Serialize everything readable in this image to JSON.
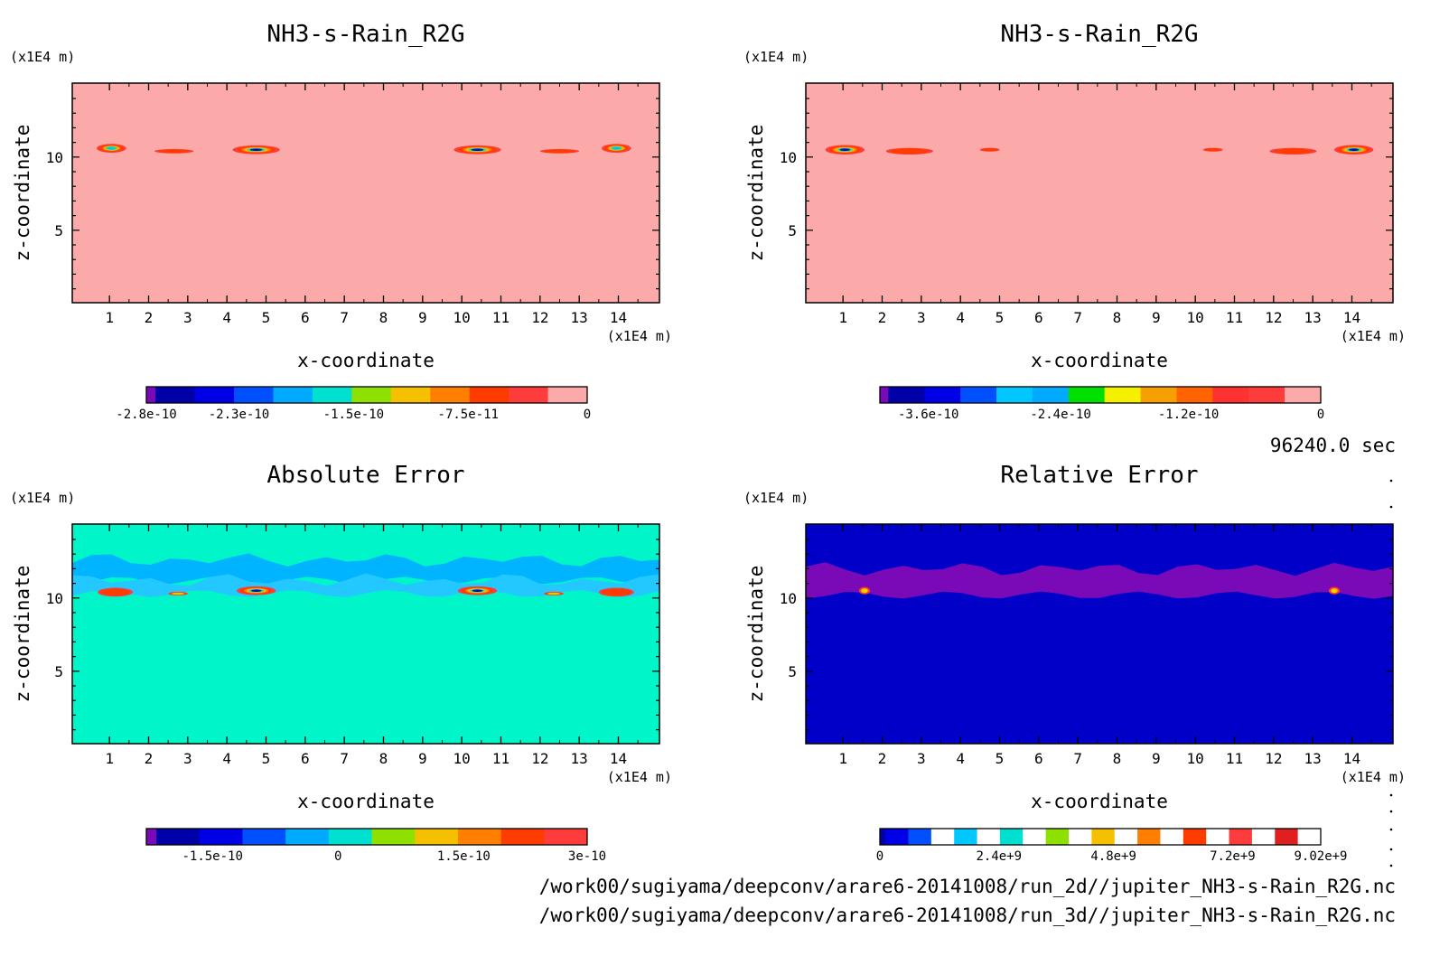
{
  "footer": {
    "time": "96240.0 sec",
    "file1": "/work00/sugiyama/deepconv/arare6-20141008/run_2d//jupiter_NH3-s-Rain_R2G.nc",
    "file2": "/work00/sugiyama/deepconv/arare6-20141008/run_3d//jupiter_NH3-s-Rain_R2G.nc"
  },
  "chart_data": [
    {
      "type": "heatmap",
      "title": "NH3-s-Rain_R2G",
      "xlabel": "x-coordinate",
      "ylabel": "z-coordinate",
      "x_unit": "(x1E4 m)",
      "z_unit": "(x1E4 m)",
      "xlim": [
        0.05,
        15.05
      ],
      "zlim": [
        0.05,
        15.05
      ],
      "xticks": [
        "1",
        "2",
        "3",
        "4",
        "5",
        "6",
        "7",
        "8",
        "9",
        "10",
        "11",
        "12",
        "13",
        "14"
      ],
      "zticks": [
        "5",
        "10"
      ],
      "background": "#fba9a9",
      "colorbar": {
        "colors": [
          "#7a0ab8",
          "#0000a8",
          "#0000e6",
          "#0050ff",
          "#00aaff",
          "#00e0d0",
          "#8ee000",
          "#f5c000",
          "#ff8000",
          "#ff3c00",
          "#ff3c3c",
          "#fba9a9"
        ],
        "ticks": [
          "-2.8e-10",
          "-2.3e-10",
          "-1.5e-10",
          "-7.5e-11",
          "0"
        ],
        "tick_positions": [
          0,
          0.21,
          0.47,
          0.73,
          1
        ]
      },
      "blobs": [
        {
          "x": 1.05,
          "z": 10.6,
          "w": 0.75,
          "h": 0.6,
          "core": "#00c8e0"
        },
        {
          "x": 2.65,
          "z": 10.4,
          "w": 1.0,
          "h": 0.3,
          "core": "#ff3c00"
        },
        {
          "x": 4.75,
          "z": 10.5,
          "w": 1.2,
          "h": 0.6,
          "core": "#0000a8"
        },
        {
          "x": 10.4,
          "z": 10.5,
          "w": 1.2,
          "h": 0.6,
          "core": "#0000a8"
        },
        {
          "x": 12.5,
          "z": 10.4,
          "w": 1.0,
          "h": 0.3,
          "core": "#ff3c00"
        },
        {
          "x": 13.95,
          "z": 10.6,
          "w": 0.75,
          "h": 0.6,
          "core": "#00c8e0"
        }
      ]
    },
    {
      "type": "heatmap",
      "title": "NH3-s-Rain_R2G",
      "xlabel": "x-coordinate",
      "ylabel": "z-coordinate",
      "x_unit": "(x1E4 m)",
      "z_unit": "(x1E4 m)",
      "xlim": [
        0.05,
        15.05
      ],
      "zlim": [
        0.05,
        15.05
      ],
      "xticks": [
        "1",
        "2",
        "3",
        "4",
        "5",
        "6",
        "7",
        "8",
        "9",
        "10",
        "11",
        "12",
        "13",
        "14"
      ],
      "zticks": [
        "5",
        "10"
      ],
      "background": "#fba9a9",
      "colorbar": {
        "colors": [
          "#7a0ab8",
          "#0000a8",
          "#0000e6",
          "#0050ff",
          "#00c8ff",
          "#00aaff",
          "#00e000",
          "#f5f000",
          "#f5a000",
          "#ff6400",
          "#ff3232",
          "#ff3c3c",
          "#fba9a9"
        ],
        "ticks": [
          "-3.6e-10",
          "-2.4e-10",
          "-1.2e-10",
          "0"
        ],
        "tick_positions": [
          0.11,
          0.41,
          0.7,
          1
        ]
      },
      "blobs": [
        {
          "x": 1.05,
          "z": 10.5,
          "w": 1.0,
          "h": 0.65,
          "core": "#0000a8"
        },
        {
          "x": 2.7,
          "z": 10.4,
          "w": 1.2,
          "h": 0.45,
          "core": "#ff3c00"
        },
        {
          "x": 4.75,
          "z": 10.5,
          "w": 0.5,
          "h": 0.25,
          "core": "#ff3c00"
        },
        {
          "x": 10.45,
          "z": 10.5,
          "w": 0.5,
          "h": 0.25,
          "core": "#ff3c00"
        },
        {
          "x": 12.5,
          "z": 10.4,
          "w": 1.2,
          "h": 0.45,
          "core": "#ff3c00"
        },
        {
          "x": 14.05,
          "z": 10.5,
          "w": 1.0,
          "h": 0.65,
          "core": "#0000a8"
        }
      ]
    },
    {
      "type": "heatmap",
      "title": "Absolute Error",
      "xlabel": "x-coordinate",
      "ylabel": "z-coordinate",
      "x_unit": "(x1E4 m)",
      "z_unit": "(x1E4 m)",
      "xlim": [
        0.05,
        15.05
      ],
      "zlim": [
        0.05,
        15.05
      ],
      "xticks": [
        "1",
        "2",
        "3",
        "4",
        "5",
        "6",
        "7",
        "8",
        "9",
        "10",
        "11",
        "12",
        "13",
        "14"
      ],
      "zticks": [
        "5",
        "10"
      ],
      "background": "#00f5c8",
      "colorbar": {
        "colors": [
          "#7a0ab8",
          "#0000a8",
          "#0000e6",
          "#0050ff",
          "#00aaff",
          "#00e0d0",
          "#8ee000",
          "#f5c000",
          "#ff8000",
          "#ff3c00",
          "#ff3c3c"
        ],
        "ticks": [
          "-1.5e-10",
          "0",
          "1.5e-10",
          "3e-10"
        ],
        "tick_positions": [
          0.15,
          0.435,
          0.72,
          1
        ]
      },
      "bands": [
        {
          "x1": 0.05,
          "x2": 15.05,
          "z1": 11.2,
          "z2": 12.6,
          "color": "#00b4ff"
        },
        {
          "x1": 0.05,
          "x2": 15.05,
          "z1": 10.3,
          "z2": 11.2,
          "color": "#22c8ff"
        }
      ],
      "blobs": [
        {
          "x": 1.15,
          "z": 10.4,
          "w": 0.9,
          "h": 0.6,
          "core": "#ff3c00"
        },
        {
          "x": 2.75,
          "z": 10.3,
          "w": 0.5,
          "h": 0.25,
          "core": "#f5c000"
        },
        {
          "x": 4.75,
          "z": 10.5,
          "w": 1.0,
          "h": 0.6,
          "core": "#0000a8"
        },
        {
          "x": 10.4,
          "z": 10.5,
          "w": 1.0,
          "h": 0.6,
          "core": "#0000a8"
        },
        {
          "x": 12.35,
          "z": 10.3,
          "w": 0.5,
          "h": 0.25,
          "core": "#f5c000"
        },
        {
          "x": 13.95,
          "z": 10.4,
          "w": 0.9,
          "h": 0.6,
          "core": "#ff3c00"
        }
      ]
    },
    {
      "type": "heatmap",
      "title": "Relative Error",
      "xlabel": "x-coordinate",
      "ylabel": "z-coordinate",
      "x_unit": "(x1E4 m)",
      "z_unit": "(x1E4 m)",
      "xlim": [
        0.05,
        15.05
      ],
      "zlim": [
        0.05,
        15.05
      ],
      "xticks": [
        "1",
        "2",
        "3",
        "4",
        "5",
        "6",
        "7",
        "8",
        "9",
        "10",
        "11",
        "12",
        "13",
        "14"
      ],
      "zticks": [
        "5",
        "10"
      ],
      "background": "#0000c8",
      "colorbar": {
        "colors": [
          "#0000a8",
          "#0000e6",
          "#0050ff",
          "#ffffff",
          "#00c8ff",
          "#ffffff",
          "#00e0d0",
          "#ffffff",
          "#8ee000",
          "#ffffff",
          "#f5c000",
          "#ffffff",
          "#ff8000",
          "#ffffff",
          "#ff3c00",
          "#ffffff",
          "#ff3c3c",
          "#ffffff",
          "#e02020",
          "#ffffff"
        ],
        "ticks": [
          "0",
          "2.4e+9",
          "4.8e+9",
          "7.2e+9",
          "9.02e+9"
        ],
        "tick_positions": [
          0,
          0.27,
          0.53,
          0.8,
          1
        ]
      },
      "bands": [
        {
          "x1": 0.05,
          "x2": 15.05,
          "z1": 10.2,
          "z2": 12.0,
          "color": "#7a0ab8"
        }
      ],
      "blobs": [
        {
          "x": 1.55,
          "z": 10.5,
          "w": 0.28,
          "h": 0.5,
          "core": "#ffd000"
        },
        {
          "x": 13.55,
          "z": 10.5,
          "w": 0.28,
          "h": 0.5,
          "core": "#ffd000"
        }
      ]
    }
  ]
}
